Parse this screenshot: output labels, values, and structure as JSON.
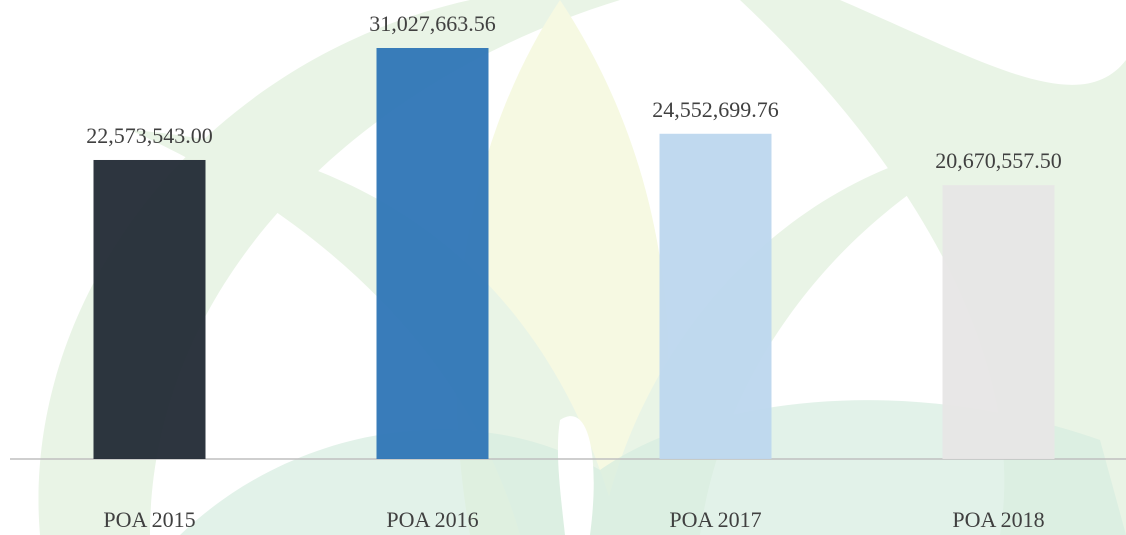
{
  "chart_data": {
    "type": "bar",
    "categories": [
      "POA 2015",
      "POA 2016",
      "POA 2017",
      "POA 2018"
    ],
    "values": [
      22573543.0,
      31027663.56,
      24552699.76,
      20670557.5
    ],
    "value_labels": [
      "22,573,543.00",
      "31,027,663.56",
      "24,552,699.76",
      "20,670,557.50"
    ],
    "colors": [
      "#222a35",
      "#2e75b6",
      "#bdd7ee",
      "#e7e6e6"
    ]
  }
}
